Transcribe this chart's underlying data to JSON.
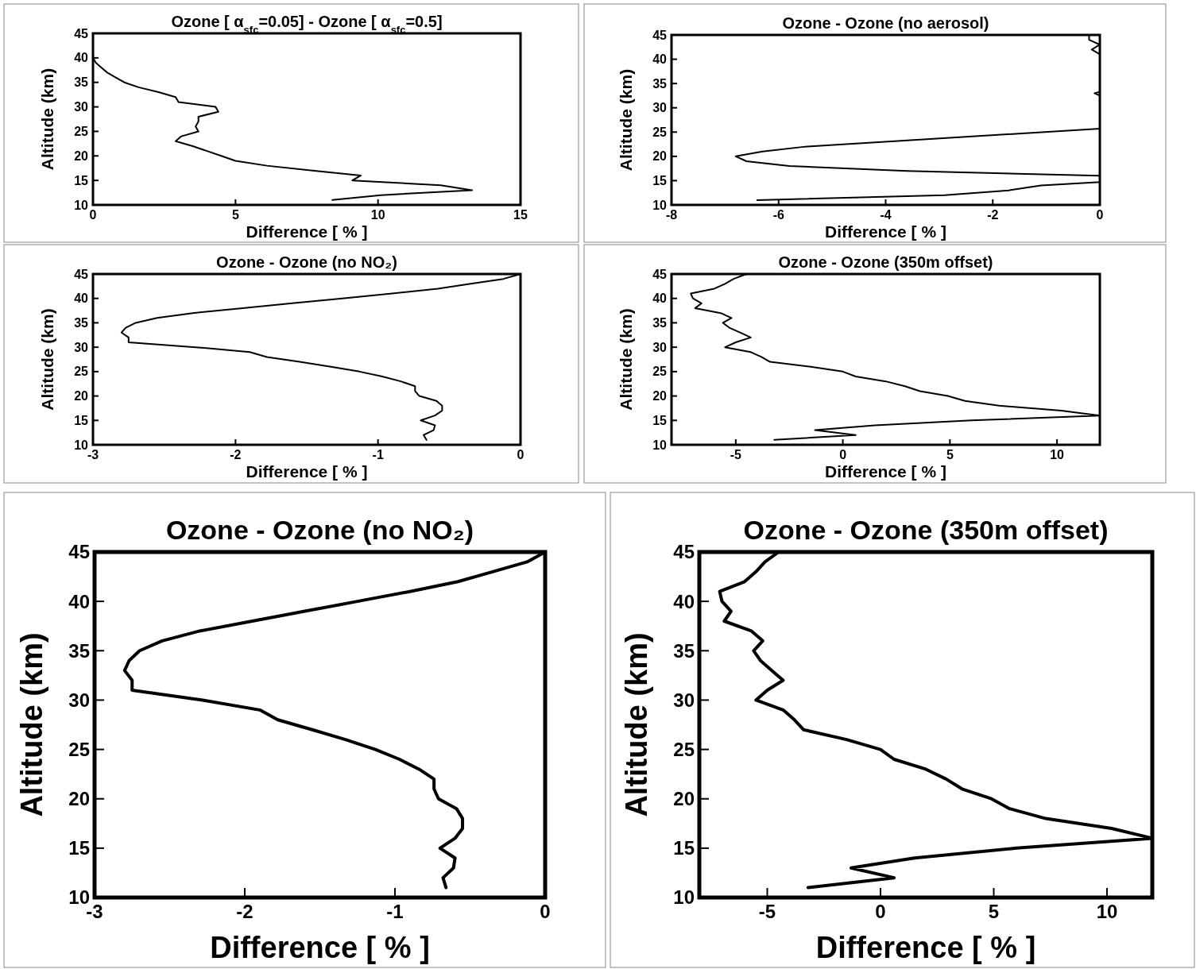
{
  "chart_data": [
    {
      "type": "line",
      "title": "Ozone [ α$_{sfc}$=0.05] - Ozone [ α$_{sfc}$=0.5]",
      "xlabel": "Difference [ % ]",
      "ylabel": "Altitude (km)",
      "color": "#000000",
      "xlim": [
        0,
        15
      ],
      "xticks": [
        0,
        5,
        10,
        15
      ],
      "ylim": [
        10,
        45
      ],
      "yticks": [
        10,
        15,
        20,
        25,
        30,
        35,
        40,
        45
      ],
      "x": [
        8.4,
        10.1,
        13.3,
        12.2,
        9.1,
        9.4,
        7.7,
        6.1,
        5.0,
        4.5,
        4.0,
        3.5,
        2.9,
        3.1,
        3.7,
        3.6,
        3.7,
        3.7,
        4.4,
        4.3,
        3.0,
        2.9,
        2.3,
        1.6,
        1.1,
        0.8,
        0.5,
        0.3,
        0.1,
        0
      ],
      "values": [
        11,
        12,
        13,
        14,
        15,
        16,
        17,
        18,
        19,
        20,
        21,
        22,
        23,
        24,
        25,
        26,
        27,
        28,
        29,
        30,
        31,
        32,
        33,
        34,
        35,
        36,
        37,
        38,
        39,
        40
      ]
    },
    {
      "type": "line",
      "title": "Ozone - Ozone (no aerosol)",
      "xlabel": "Difference [ % ]",
      "ylabel": "Altitude (km)",
      "color": "#000000",
      "xlim": [
        -8,
        0
      ],
      "xticks": [
        -8,
        -6,
        -4,
        -2,
        0
      ],
      "ylim": [
        10,
        45
      ],
      "yticks": [
        10,
        15,
        20,
        25,
        30,
        35,
        40,
        45
      ],
      "x": [
        -6.4,
        -2.9,
        -1.7,
        -1.1,
        0,
        0,
        -3.6,
        -5.8,
        -6.6,
        -6.8,
        -6.3,
        -5.5,
        0,
        0,
        -0.1,
        0,
        0,
        -0.15,
        0,
        -0.2,
        -0.2
      ],
      "values": [
        11,
        12,
        13,
        14,
        14.7,
        16,
        17,
        18,
        19,
        20,
        21,
        22,
        25.7,
        32.5,
        33,
        33.3,
        41,
        42,
        43,
        44,
        45
      ]
    },
    {
      "type": "line",
      "title": "Ozone - Ozone (no NO₂)",
      "xlabel": "Difference [ % ]",
      "ylabel": "Altitude (km)",
      "color": "#000000",
      "xlim": [
        -3,
        0
      ],
      "xticks": [
        -3,
        -2,
        -1,
        0
      ],
      "ylim": [
        10,
        45
      ],
      "yticks": [
        10,
        15,
        20,
        25,
        30,
        35,
        40,
        45
      ],
      "x": [
        -0.66,
        -0.68,
        -0.61,
        -0.6,
        -0.7,
        -0.6,
        -0.55,
        -0.55,
        -0.59,
        -0.71,
        -0.74,
        -0.74,
        -0.84,
        -0.97,
        -1.13,
        -1.33,
        -1.55,
        -1.78,
        -1.9,
        -2.28,
        -2.75,
        -2.75,
        -2.8,
        -2.77,
        -2.7,
        -2.55,
        -2.3,
        -1.95,
        -1.6,
        -1.25,
        -0.9,
        -0.58,
        -0.35,
        -0.12,
        0
      ],
      "values": [
        11,
        12,
        13,
        14,
        15,
        16,
        17,
        18,
        19,
        20,
        21,
        22,
        23,
        24,
        25,
        26,
        27,
        28,
        29,
        30,
        31,
        32,
        33,
        34,
        35,
        36,
        37,
        38,
        39,
        40,
        41,
        42,
        43,
        44,
        45
      ]
    },
    {
      "type": "line",
      "title": "Ozone - Ozone (350m offset)",
      "xlabel": "Difference [ % ]",
      "ylabel": "Altitude (km)",
      "color": "#000000",
      "xlim": [
        -8,
        12
      ],
      "xticks": [
        -5,
        0,
        5,
        10
      ],
      "ylim": [
        10,
        45
      ],
      "yticks": [
        10,
        15,
        20,
        25,
        30,
        35,
        40,
        45
      ],
      "x": [
        -3.2,
        0.6,
        -1.3,
        1.5,
        6.0,
        12,
        10.2,
        7.3,
        5.7,
        4.9,
        3.6,
        2.9,
        2.0,
        0.6,
        0,
        -1.5,
        -3.4,
        -3.8,
        -4.3,
        -5.5,
        -5.0,
        -4.3,
        -4.8,
        -5.3,
        -5.6,
        -5.2,
        -5.7,
        -6.9,
        -6.6,
        -7.0,
        -7.1,
        -6.0,
        -5.5,
        -5.1,
        -4.5
      ],
      "values": [
        11,
        12,
        13,
        14,
        15,
        16,
        17,
        18,
        19,
        20,
        21,
        22,
        23,
        24,
        25,
        26,
        27,
        28,
        29,
        30,
        31,
        32,
        33,
        34,
        35,
        36,
        37,
        38,
        39,
        40,
        41,
        42,
        43,
        44,
        45
      ]
    },
    {
      "type": "line",
      "title": "Ozone - Ozone (no NO₂)",
      "xlabel": "Difference [ % ]",
      "ylabel": "Altitude (km)",
      "color": "#000000",
      "xlim": [
        -3,
        0
      ],
      "xticks": [
        -3,
        -2,
        -1,
        0
      ],
      "ylim": [
        10,
        45
      ],
      "yticks": [
        10,
        15,
        20,
        25,
        30,
        35,
        40,
        45
      ],
      "x": [
        -0.66,
        -0.68,
        -0.61,
        -0.6,
        -0.7,
        -0.6,
        -0.55,
        -0.55,
        -0.59,
        -0.71,
        -0.74,
        -0.74,
        -0.84,
        -0.97,
        -1.13,
        -1.33,
        -1.55,
        -1.78,
        -1.9,
        -2.28,
        -2.75,
        -2.75,
        -2.8,
        -2.77,
        -2.7,
        -2.55,
        -2.3,
        -1.95,
        -1.6,
        -1.25,
        -0.9,
        -0.58,
        -0.35,
        -0.12,
        0
      ],
      "values": [
        11,
        12,
        13,
        14,
        15,
        16,
        17,
        18,
        19,
        20,
        21,
        22,
        23,
        24,
        25,
        26,
        27,
        28,
        29,
        30,
        31,
        32,
        33,
        34,
        35,
        36,
        37,
        38,
        39,
        40,
        41,
        42,
        43,
        44,
        45
      ]
    },
    {
      "type": "line",
      "title": "Ozone - Ozone (350m offset)",
      "xlabel": "Difference [ % ]",
      "ylabel": "Altitude (km)",
      "color": "#000000",
      "xlim": [
        -8,
        12
      ],
      "xticks": [
        -5,
        0,
        5,
        10
      ],
      "ylim": [
        10,
        45
      ],
      "yticks": [
        10,
        15,
        20,
        25,
        30,
        35,
        40,
        45
      ],
      "x": [
        -3.2,
        0.6,
        -1.3,
        1.5,
        6.0,
        12,
        10.2,
        7.3,
        5.7,
        4.9,
        3.6,
        2.9,
        2.0,
        0.6,
        0,
        -1.5,
        -3.4,
        -3.8,
        -4.3,
        -5.5,
        -5.0,
        -4.3,
        -4.8,
        -5.3,
        -5.6,
        -5.2,
        -5.7,
        -6.9,
        -6.6,
        -7.0,
        -7.1,
        -6.0,
        -5.5,
        -5.1,
        -4.5
      ],
      "values": [
        11,
        12,
        13,
        14,
        15,
        16,
        17,
        18,
        19,
        20,
        21,
        22,
        23,
        24,
        25,
        26,
        27,
        28,
        29,
        30,
        31,
        32,
        33,
        34,
        35,
        36,
        37,
        38,
        39,
        40,
        41,
        42,
        43,
        44,
        45
      ]
    }
  ]
}
